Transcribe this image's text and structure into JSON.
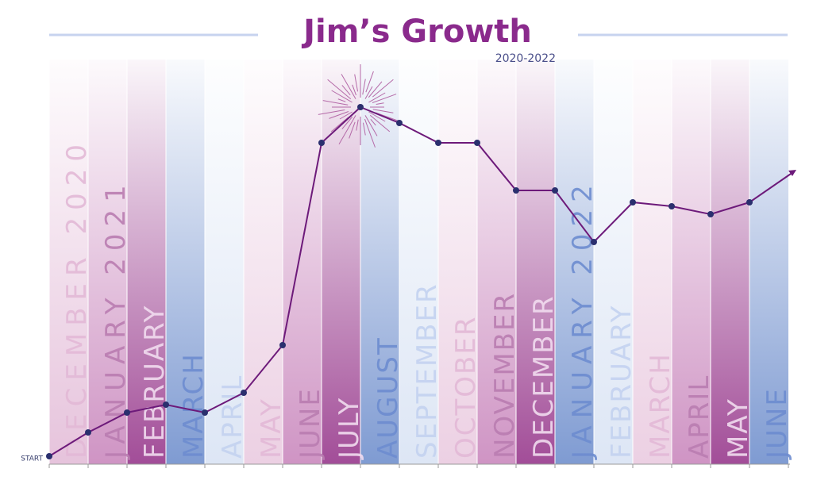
{
  "chart_data": {
    "type": "line",
    "title": "Jim’s Growth",
    "subtitle": "2020-2022",
    "start_label": "START",
    "categories": [
      "DECEMBER 2020",
      "JANUARY 2021",
      "FEBRUARY",
      "MARCH",
      "APRIL",
      "MAY",
      "JUNE",
      "JULY",
      "AUGUST",
      "SEPTEMBER",
      "OCTOBER",
      "NOVEMBER",
      "DECEMBER",
      "JANUARY 2022",
      "FEBRUARY",
      "MARCH",
      "APRIL",
      "MAY",
      "JUNE"
    ],
    "series": [
      {
        "name": "Growth",
        "color": "#6d1a7a",
        "values": [
          0,
          6,
          11,
          13,
          11,
          16,
          28,
          79,
          88,
          84,
          79,
          79,
          67,
          67,
          54,
          64,
          63,
          61,
          64
        ]
      }
    ],
    "ylim": [
      0,
      100
    ],
    "column_colors": [
      "#e6c3dc",
      "#cf94c4",
      "#a24d98",
      "#7f9bd2",
      "#dde6f5",
      "#ecd0e3",
      "#cf94c4",
      "#a24d98",
      "#7f9bd2",
      "#dde6f5",
      "#ecd0e3",
      "#cf94c4",
      "#a24d98",
      "#7f9bd2",
      "#dde6f5",
      "#ecd0e3",
      "#cf94c4",
      "#a24d98",
      "#7f9bd2"
    ],
    "label_colors": [
      "#e2b8d6",
      "#b97cb0",
      "#f1dcee",
      "#6d8ccf",
      "#c3d2ef",
      "#e2b8d6",
      "#b97cb0",
      "#f1dcee",
      "#6d8ccf",
      "#c3d2ef",
      "#e2b8d6",
      "#b97cb0",
      "#f1dcee",
      "#6d8ccf",
      "#c3d2ef",
      "#e2b8d6",
      "#b97cb0",
      "#f1dcee",
      "#6d8ccf"
    ]
  }
}
